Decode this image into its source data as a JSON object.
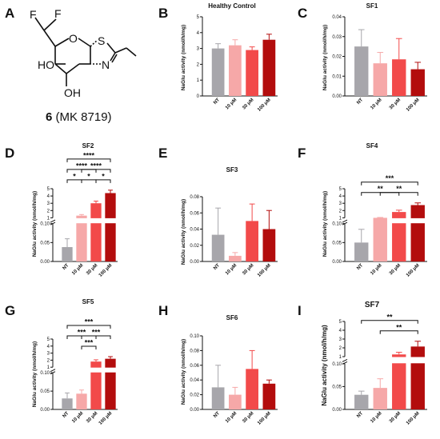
{
  "compound": {
    "panel": "A",
    "number": "6",
    "name": " (MK 8719)",
    "atoms": {
      "F1": "F",
      "F2": "F",
      "O": "O",
      "S": "S",
      "N": "N",
      "HO": "HO",
      "OH": "OH"
    }
  },
  "colors": {
    "NT": "#a7a6ab",
    "10 μM": "#f6a8a8",
    "30 μM": "#f24a4a",
    "100 μM": "#b30d0d"
  },
  "chart_data": [
    {
      "panel": "B",
      "title": "Healthy Control",
      "type": "bar",
      "ylabel": "NaGlu activity (nmol/h/mg)",
      "categories": [
        "NT",
        "10 μM",
        "30 μM",
        "100 μM"
      ],
      "values": [
        3.0,
        3.2,
        2.9,
        3.55
      ],
      "errors": [
        0.3,
        0.35,
        0.2,
        0.35
      ],
      "ylim": [
        0,
        5
      ],
      "ticks": [
        "0",
        "1",
        "2",
        "3",
        "4",
        "5"
      ],
      "comparisons": []
    },
    {
      "panel": "C",
      "title": "SF1",
      "type": "bar",
      "ylabel": "NaGlu activity (nmol/h/mg)",
      "categories": [
        "NT",
        "10 μM",
        "30 μM",
        "100 μM"
      ],
      "values": [
        0.025,
        0.0165,
        0.0185,
        0.0135
      ],
      "errors": [
        0.0085,
        0.0055,
        0.0105,
        0.0035
      ],
      "ylim": [
        0,
        0.04
      ],
      "ticks": [
        "0.00",
        "0.01",
        "0.02",
        "0.03",
        "0.04"
      ],
      "comparisons": []
    },
    {
      "panel": "D",
      "title": "SF2",
      "type": "bar",
      "broken_axis": true,
      "ylabel": "NaGlu activity (nmol/h/mg)",
      "categories": [
        "NT",
        "10 μM",
        "30 μM",
        "100 μM"
      ],
      "values": [
        0.038,
        1.3,
        3.0,
        4.4
      ],
      "errors": [
        0.022,
        0.15,
        0.3,
        0.4
      ],
      "lower_ticks": [
        "0.00",
        "0.05",
        "0.10"
      ],
      "upper_ticks": [
        "1",
        "2",
        "3",
        "4",
        "5"
      ],
      "comparisons": [
        {
          "from": "NT",
          "to": "10 μM",
          "label": "*"
        },
        {
          "from": "10 μM",
          "to": "30 μM",
          "label": "*"
        },
        {
          "from": "30 μM",
          "to": "100 μM",
          "label": "*"
        },
        {
          "from": "NT",
          "to": "30 μM",
          "label": "****"
        },
        {
          "from": "10 μM",
          "to": "100 μM",
          "label": "****"
        },
        {
          "from": "NT",
          "to": "100 μM",
          "label": "****"
        }
      ]
    },
    {
      "panel": "E",
      "title": "SF3",
      "type": "bar",
      "ylabel": "NaGlu activity (nmol/h/mg)",
      "categories": [
        "NT",
        "10 μM",
        "30 μM",
        "100 μM"
      ],
      "values": [
        0.033,
        0.007,
        0.05,
        0.04
      ],
      "errors": [
        0.033,
        0.004,
        0.021,
        0.023
      ],
      "ylim": [
        0,
        0.08
      ],
      "ticks": [
        "0.00",
        "0.02",
        "0.04",
        "0.06",
        "0.08"
      ],
      "comparisons": []
    },
    {
      "panel": "F",
      "title": "SF4",
      "type": "bar",
      "broken_axis": true,
      "ylabel": "NaGlu activity (nmol/h/mg)",
      "categories": [
        "NT",
        "10 μM",
        "30 μM",
        "100 μM"
      ],
      "values": [
        0.05,
        1.0,
        1.8,
        2.75
      ],
      "errors": [
        0.035,
        0.05,
        0.25,
        0.3
      ],
      "lower_ticks": [
        "0.00",
        "0.05",
        "0.10"
      ],
      "upper_ticks": [
        "1",
        "2",
        "3",
        "4",
        "5"
      ],
      "comparisons": [
        {
          "from": "NT",
          "to": "30 μM",
          "label": "**"
        },
        {
          "from": "10 μM",
          "to": "100 μM",
          "label": "**"
        },
        {
          "from": "NT",
          "to": "100 μM",
          "label": "***"
        }
      ]
    },
    {
      "panel": "G",
      "title": "SF5",
      "type": "bar",
      "broken_axis": true,
      "ylabel": "NaGlu activity (nmol/h/mg)",
      "categories": [
        "NT",
        "10 μM",
        "30 μM",
        "100 μM"
      ],
      "values": [
        0.03,
        0.043,
        1.8,
        2.2
      ],
      "errors": [
        0.015,
        0.01,
        0.25,
        0.3
      ],
      "lower_ticks": [
        "0.00",
        "0.05",
        "0.10"
      ],
      "upper_ticks": [
        "1",
        "2",
        "3",
        "4",
        "5"
      ],
      "comparisons": [
        {
          "from": "10 μM",
          "to": "30 μM",
          "label": "***"
        },
        {
          "from": "NT",
          "to": "30 μM",
          "label": "***"
        },
        {
          "from": "10 μM",
          "to": "100 μM",
          "label": "***"
        },
        {
          "from": "NT",
          "to": "100 μM",
          "label": "***"
        }
      ]
    },
    {
      "panel": "H",
      "title": "SF6",
      "type": "bar",
      "ylabel": "NaGlu activity (nmol/h/mg)",
      "categories": [
        "NT",
        "10 μM",
        "30 μM",
        "100 μM"
      ],
      "values": [
        0.03,
        0.02,
        0.055,
        0.035
      ],
      "errors": [
        0.03,
        0.01,
        0.025,
        0.005
      ],
      "ylim": [
        0,
        0.1
      ],
      "ticks": [
        "0.00",
        "0.02",
        "0.04",
        "0.06",
        "0.08",
        "0.10"
      ],
      "comparisons": []
    },
    {
      "panel": "I",
      "title": "SF7",
      "type": "bar",
      "broken_axis": true,
      "ylabel": "NaGlu activity (nmol/h/mg)",
      "categories": [
        "NT",
        "10 μM",
        "30 μM",
        "100 μM"
      ],
      "values": [
        0.032,
        0.047,
        1.25,
        2.15
      ],
      "errors": [
        0.008,
        0.02,
        0.25,
        0.6
      ],
      "lower_ticks": [
        "0.00",
        "0.05",
        "0.10"
      ],
      "upper_ticks": [
        "1",
        "2",
        "3",
        "4",
        "5"
      ],
      "comparisons": [
        {
          "from": "10 μM",
          "to": "100 μM",
          "label": "**"
        },
        {
          "from": "NT",
          "to": "100 μM",
          "label": "**"
        }
      ]
    }
  ]
}
